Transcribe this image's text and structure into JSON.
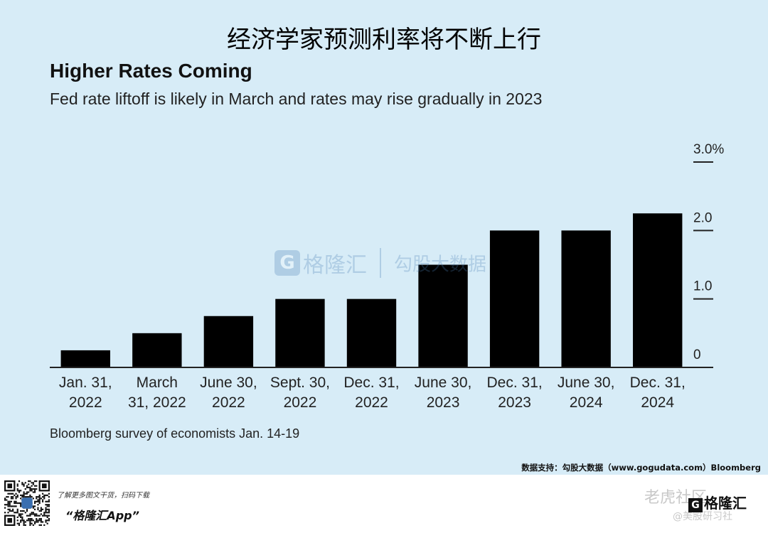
{
  "header": {
    "cn_title": "经济学家预测利率将不断上行"
  },
  "chart_data": {
    "type": "bar",
    "title": "Higher Rates Coming",
    "subtitle": "Fed rate liftoff is likely in March and rates may rise gradually in 2023",
    "categories": [
      [
        "Jan. 31,",
        "2022"
      ],
      [
        "March",
        "31, 2022"
      ],
      [
        "June 30,",
        "2022"
      ],
      [
        "Sept. 30,",
        "2022"
      ],
      [
        "Dec. 31,",
        "2022"
      ],
      [
        "June 30,",
        "2023"
      ],
      [
        "Dec. 31,",
        "2023"
      ],
      [
        "June 30,",
        "2024"
      ],
      [
        "Dec. 31,",
        "2024"
      ]
    ],
    "values": [
      0.25,
      0.5,
      0.75,
      1.0,
      1.0,
      1.5,
      2.0,
      2.0,
      2.25
    ],
    "ylim": [
      0,
      3.0
    ],
    "yticks": [
      0,
      1.0,
      2.0,
      3.0
    ],
    "ytick_labels": [
      "0",
      "1.0",
      "2.0",
      "3.0%"
    ],
    "axis_side": "right",
    "bar_color": "#000000",
    "note": "Bloomberg survey of economists Jan. 14-19"
  },
  "credit": "数据支持：勾股大数据（www.gogudata.com）Bloomberg",
  "footer": {
    "tagline": "了解更多图文干货，扫码下载",
    "app_name": "“格隆汇App”",
    "tiger_brand": "老虎社区",
    "tiger_sub": "@美股研习社",
    "logo_text": "格隆汇",
    "logo_letter": "G"
  },
  "watermark": {
    "logo_letter": "G",
    "brand": "格隆汇",
    "partner": "勾股大数据"
  },
  "colors": {
    "background": "#d7ecf7",
    "bars": "#000000",
    "watermark": "#4a7fb5"
  }
}
